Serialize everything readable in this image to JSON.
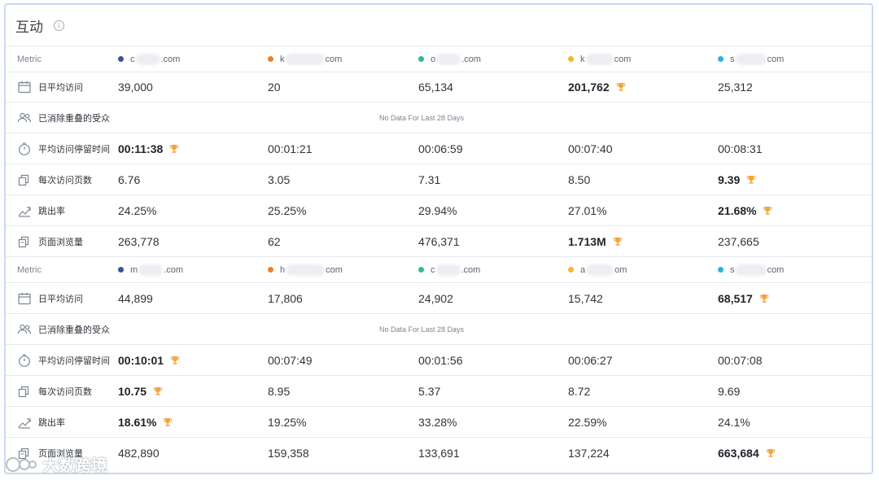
{
  "card": {
    "title": "互动"
  },
  "labels": {
    "metric": "Metric",
    "daily_visits": "日平均访问",
    "dedup_audience": "已消除重叠的受众",
    "avg_duration": "平均访问停留时间",
    "pages_per_visit": "每次访问页数",
    "bounce_rate": "跳出率",
    "page_views": "页面浏览量",
    "no_data": "No Data For Last 28 Days"
  },
  "groups": [
    {
      "domains": [
        {
          "prefix": "c",
          "suffix": ".com",
          "color": "#3f4f9a"
        },
        {
          "prefix": "k",
          "suffix": "com",
          "color": "#f07f2a"
        },
        {
          "prefix": "o",
          "suffix": ".com",
          "color": "#2dbd93"
        },
        {
          "prefix": "k",
          "suffix": "com",
          "color": "#f7b52a"
        },
        {
          "prefix": "s",
          "suffix": "com",
          "color": "#22b5e0"
        }
      ],
      "daily_visits": [
        "39,000",
        "20",
        "65,134",
        "201,762",
        "25,312"
      ],
      "daily_visits_best": 3,
      "avg_duration": [
        "00:11:38",
        "00:01:21",
        "00:06:59",
        "00:07:40",
        "00:08:31"
      ],
      "avg_duration_best": 0,
      "pages_per_visit": [
        "6.76",
        "3.05",
        "7.31",
        "8.50",
        "9.39"
      ],
      "pages_per_visit_best": 4,
      "bounce_rate": [
        "24.25%",
        "25.25%",
        "29.94%",
        "27.01%",
        "21.68%"
      ],
      "bounce_rate_best": 4,
      "page_views": [
        "263,778",
        "62",
        "476,371",
        "1.713M",
        "237,665"
      ],
      "page_views_best": 3
    },
    {
      "domains": [
        {
          "prefix": "m",
          "suffix": ".com",
          "color": "#3f4f9a"
        },
        {
          "prefix": "h",
          "suffix": "com",
          "color": "#f07f2a"
        },
        {
          "prefix": "c",
          "suffix": ".com",
          "color": "#2dbd93"
        },
        {
          "prefix": "a",
          "suffix": "om",
          "color": "#f7b52a"
        },
        {
          "prefix": "s",
          "suffix": "com",
          "color": "#22b5e0"
        }
      ],
      "daily_visits": [
        "44,899",
        "17,806",
        "24,902",
        "15,742",
        "68,517"
      ],
      "daily_visits_best": 4,
      "avg_duration": [
        "00:10:01",
        "00:07:49",
        "00:01:56",
        "00:06:27",
        "00:07:08"
      ],
      "avg_duration_best": 0,
      "pages_per_visit": [
        "10.75",
        "8.95",
        "5.37",
        "8.72",
        "9.69"
      ],
      "pages_per_visit_best": 0,
      "bounce_rate": [
        "18.61%",
        "19.25%",
        "33.28%",
        "22.59%",
        "24.1%"
      ],
      "bounce_rate_best": 0,
      "page_views": [
        "482,890",
        "159,358",
        "133,691",
        "137,224",
        "663,684"
      ],
      "page_views_best": 4
    }
  ],
  "watermark": {
    "text": "大数跨境"
  },
  "colors": {
    "trophy": "#f4a53b",
    "border": "#c9d8f5"
  }
}
